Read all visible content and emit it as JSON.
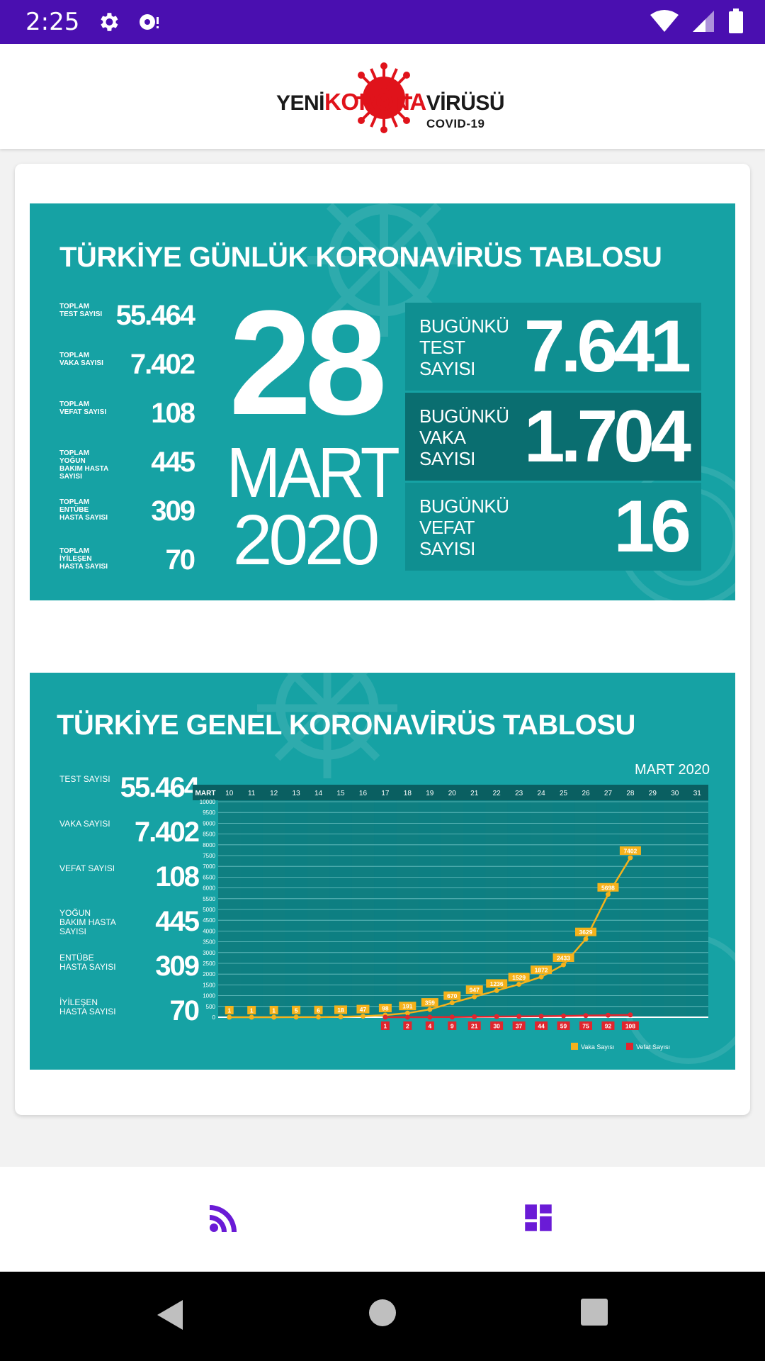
{
  "status_bar": {
    "time": "2:25"
  },
  "header": {
    "logo_text_1": "YENİ",
    "logo_text_2": "KORONA",
    "logo_text_3": "VİRÜSÜ",
    "logo_sub": "COVID-19"
  },
  "daily": {
    "title": "TÜRKİYE GÜNLÜK KORONAVİRÜS TABLOSU",
    "stats": [
      {
        "label": "TOPLAM TEST SAYISI",
        "value": "55.464"
      },
      {
        "label": "TOPLAM VAKA SAYISI",
        "value": "7.402"
      },
      {
        "label": "TOPLAM VEFAT SAYISI",
        "value": "108"
      },
      {
        "label": "TOPLAM YOĞUN BAKIM HASTA SAYISI",
        "value": "445"
      },
      {
        "label": "TOPLAM ENTÜBE HASTA SAYISI",
        "value": "309"
      },
      {
        "label": "TOPLAM İYİLEŞEN HASTA SAYISI",
        "value": "70"
      }
    ],
    "day": "28",
    "month": "MART",
    "year": "2020",
    "today": [
      {
        "label": "BUGÜNKÜ TEST SAYISI",
        "value": "7.641"
      },
      {
        "label": "BUGÜNKÜ VAKA SAYISI",
        "value": "1.704"
      },
      {
        "label": "BUGÜNKÜ VEFAT SAYISI",
        "value": "16"
      }
    ]
  },
  "general": {
    "title": "TÜRKİYE GENEL KORONAVİRÜS TABLOSU",
    "stats": [
      {
        "label": "TEST SAYISI",
        "value": "55.464"
      },
      {
        "label": "VAKA SAYISI",
        "value": "7.402"
      },
      {
        "label": "VEFAT SAYISI",
        "value": "108"
      },
      {
        "label": "YOĞUN BAKIM HASTA SAYISI",
        "value": "445"
      },
      {
        "label": "ENTÜBE HASTA SAYISI",
        "value": "309"
      },
      {
        "label": "İYİLEŞEN HASTA SAYISI",
        "value": "70"
      }
    ]
  },
  "chart_data": {
    "type": "line",
    "title": "MART 2020",
    "x_header": "MART",
    "x": [
      10,
      11,
      12,
      13,
      14,
      15,
      16,
      17,
      18,
      19,
      20,
      21,
      22,
      23,
      24,
      25,
      26,
      27,
      28,
      29,
      30,
      31
    ],
    "ylim": [
      0,
      10000
    ],
    "yticks": [
      0,
      500,
      1000,
      1500,
      2000,
      2500,
      3000,
      3500,
      4000,
      4500,
      5000,
      5500,
      6000,
      6500,
      7000,
      7500,
      8000,
      8500,
      9000,
      9500,
      10000
    ],
    "series": [
      {
        "name": "Vaka Sayısı",
        "color": "#f5b21b",
        "x": [
          10,
          11,
          12,
          13,
          14,
          15,
          16,
          17,
          18,
          19,
          20,
          21,
          22,
          23,
          24,
          25,
          26,
          27,
          28
        ],
        "values": [
          1,
          1,
          1,
          5,
          6,
          18,
          47,
          98,
          191,
          359,
          670,
          947,
          1236,
          1529,
          1872,
          2433,
          3629,
          5698,
          7402
        ]
      },
      {
        "name": "Vefat Sayısı",
        "color": "#e0262e",
        "x": [
          17,
          18,
          19,
          20,
          21,
          22,
          23,
          24,
          25,
          26,
          27,
          28
        ],
        "values": [
          1,
          2,
          4,
          9,
          21,
          30,
          37,
          44,
          59,
          75,
          92,
          108
        ]
      }
    ]
  },
  "bottom_nav": {
    "feed_icon": "rss-feed-icon",
    "dashboard_icon": "dashboard-icon",
    "accent": "#6a1bd6"
  }
}
